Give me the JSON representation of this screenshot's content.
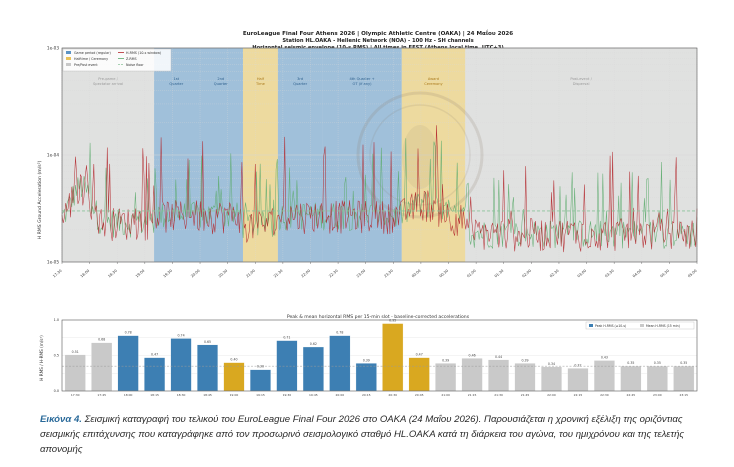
{
  "top_chart": {
    "title_lines": [
      "EuroLeague Final Four Athens 2026 | Olympic Athletic Centre (OAKA) | 24 Μαΐου 2026",
      "Station HL.OAKA - Hellenic Network (NOA) - 100 Hz - SH channels",
      "Horizontal seismic envelope (10-s RMS) | All times in EEST (Athens local time, UTC+3)"
    ],
    "ylabel": "H RMS Ground Acceleration (m/s²)",
    "legend": [
      "Game period (regular)",
      "Halftime / Ceremony",
      "Pre/Post event",
      "H-RMS (10-s window)",
      "Z-RMS",
      "Noise floor"
    ],
    "colors": {
      "blue": "#5b93c4",
      "yellow": "#e8c25a",
      "gray": "#c8c8c8",
      "rms_red": "#b3262b",
      "rms_green": "#5cab6d",
      "noise": "#8cc49a"
    }
  },
  "chart_data": [
    {
      "type": "area",
      "scale": "log",
      "ylim": [
        1e-05,
        0.001
      ],
      "y_ticks": [
        "1e-03",
        "1e-04",
        "1e-05"
      ],
      "x_ticks": [
        "17:30",
        "18:00",
        "18:30",
        "19:00",
        "19:30",
        "20:00",
        "20:30",
        "21:00",
        "21:30",
        "22:00",
        "22:30",
        "23:00",
        "23:30",
        "00:00",
        "00:30",
        "01:00",
        "01:30",
        "02:00",
        "02:30",
        "03:00",
        "03:30",
        "04:00",
        "04:30",
        "05:00"
      ],
      "periods": [
        {
          "label": "Pre-game / Spectator arrival",
          "kind": "gray",
          "start": 0.0,
          "end": 0.145
        },
        {
          "label": "1st Quarter",
          "kind": "blue",
          "start": 0.145,
          "end": 0.215
        },
        {
          "label": "2nd Quarter",
          "kind": "blue",
          "start": 0.215,
          "end": 0.285
        },
        {
          "label": "Half Time",
          "kind": "yellow",
          "start": 0.285,
          "end": 0.34
        },
        {
          "label": "3rd Quarter",
          "kind": "blue",
          "start": 0.34,
          "end": 0.41
        },
        {
          "label": "4th Quarter + OT (if any)",
          "kind": "blue",
          "start": 0.41,
          "end": 0.535
        },
        {
          "label": "Award Ceremony",
          "kind": "yellow",
          "start": 0.535,
          "end": 0.635
        },
        {
          "label": "Post-event / Dispersal",
          "kind": "gray",
          "start": 0.635,
          "end": 1.0
        }
      ],
      "noise_level": 3e-05
    },
    {
      "type": "bar",
      "title": "Peak & mean horizontal RMS per 15-min slot - baseline-corrected accelerations",
      "ylabel": "H RMS / H-RMS (m/s²)",
      "legend": [
        "Peak H-RMS (≥10-s)",
        "Mean H-RMS (15 min)"
      ],
      "categories": [
        "17:30",
        "17:45",
        "18:00",
        "18:15",
        "18:30",
        "18:45",
        "19:00",
        "19:15",
        "19:30",
        "19:45",
        "20:00",
        "20:15",
        "20:30",
        "20:45",
        "21:00",
        "21:15",
        "21:30",
        "21:45",
        "22:00",
        "22:15",
        "22:30",
        "22:45",
        "23:00",
        "23:15"
      ],
      "values": [
        0.51,
        0.68,
        0.78,
        0.47,
        0.74,
        0.65,
        0.4,
        0.3,
        0.71,
        0.62,
        0.78,
        0.39,
        0.95,
        0.47,
        0.39,
        0.46,
        0.44,
        0.39,
        0.34,
        0.32,
        0.43,
        0.35,
        0.35,
        0.35
      ],
      "kinds": [
        "gray",
        "gray",
        "blue",
        "blue",
        "blue",
        "blue",
        "yellow",
        "blue",
        "blue",
        "blue",
        "blue",
        "blue",
        "yellow",
        "yellow",
        "gray",
        "gray",
        "gray",
        "gray",
        "gray",
        "gray",
        "gray",
        "gray",
        "gray",
        "gray"
      ],
      "ylim": [
        0,
        1.0
      ]
    }
  ],
  "caption": {
    "figure_label": "Εικόνα 4.",
    "text": " Σεισμική καταγραφή του τελικού του EuroLeague Final Four 2026 στο ΟΑΚΑ (24 Μαΐου 2026). Παρουσιάζεται η χρονική εξέλιξη της οριζόντιας σεισμικής επιτάχυνσης που καταγράφηκε από τον προσωρινό σεισμολογικό σταθμό HL.OAKA κατά τη διάρκεια του αγώνα, του ημιχρόνου και της τελετής απονομής"
  }
}
